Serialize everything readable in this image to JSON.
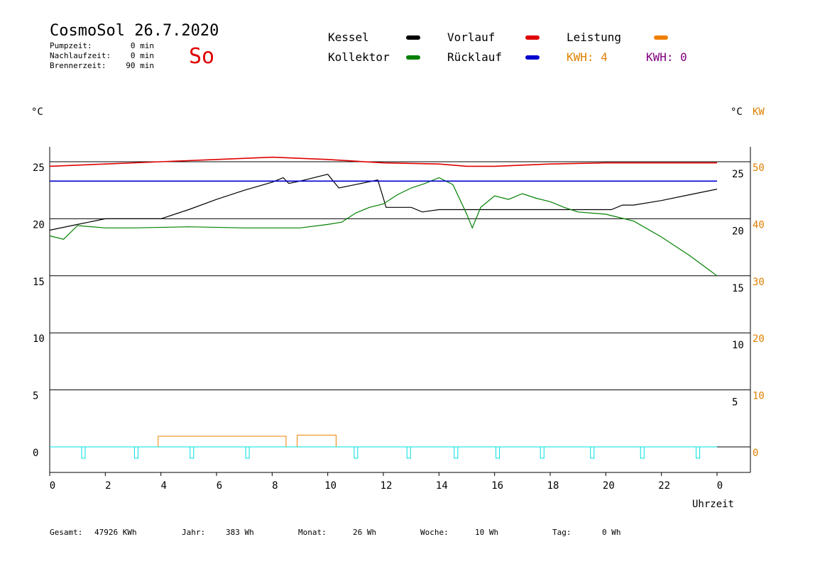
{
  "header": {
    "title": "CosmoSol 26.7.2020",
    "day": "So",
    "stats": [
      {
        "label": "Pumpzeit:",
        "value": "0 min"
      },
      {
        "label": "Nachlaufzeit:",
        "value": "0 min"
      },
      {
        "label": "Brennerzeit:",
        "value": "90 min"
      }
    ]
  },
  "legend": {
    "kessel": "Kessel",
    "kollektor": "Kollektor",
    "vorlauf": "Vorlauf",
    "ruecklauf": "Rücklauf",
    "leistung": "Leistung",
    "kwh_orange": "KWH: 4",
    "kwh_purple": "KWH: 0"
  },
  "colors": {
    "kessel": "#000000",
    "kollektor": "#008000",
    "vorlauf": "#e00000",
    "ruecklauf": "#0000d0",
    "leistung": "#f08000",
    "kwh_orange": "#e08000",
    "kwh_purple": "#800080",
    "pump": "#00e0e0",
    "title_day": "#e00000"
  },
  "axes": {
    "left_unit": "°C",
    "right_unit_c": "°C",
    "right_unit_kw": "KW",
    "x_label": "Uhrzeit"
  },
  "footer": [
    {
      "label": "Gesamt:",
      "value": "47926 KWh"
    },
    {
      "label": "Jahr:",
      "value": "383 Wh"
    },
    {
      "label": "Monat:",
      "value": "26 Wh"
    },
    {
      "label": "Woche:",
      "value": "10 Wh"
    },
    {
      "label": "Tag:",
      "value": "0 Wh"
    }
  ],
  "chart_data": {
    "type": "line",
    "xlabel": "Uhrzeit",
    "x_ticks": [
      "0",
      "2",
      "4",
      "6",
      "8",
      "10",
      "12",
      "14",
      "16",
      "18",
      "20",
      "22",
      "0"
    ],
    "xlim": [
      0,
      24
    ],
    "ylim": [
      0,
      25
    ],
    "y_ticks_left": [
      "0",
      "5",
      "10",
      "15",
      "20",
      "25"
    ],
    "y_ticks_right_c": [
      "5",
      "10",
      "15",
      "20",
      "25"
    ],
    "y_ticks_right_kw": [
      "0",
      "10",
      "20",
      "30",
      "40",
      "50"
    ],
    "grid": true,
    "series": [
      {
        "name": "Kessel",
        "points": [
          [
            0,
            19.0
          ],
          [
            1,
            19.5
          ],
          [
            2,
            20.0
          ],
          [
            3,
            20.0
          ],
          [
            4,
            20.0
          ],
          [
            5,
            20.8
          ],
          [
            6,
            21.7
          ],
          [
            7,
            22.5
          ],
          [
            8,
            23.2
          ],
          [
            8.4,
            23.6
          ],
          [
            8.6,
            23.1
          ],
          [
            9,
            23.3
          ],
          [
            10,
            23.9
          ],
          [
            10.4,
            22.7
          ],
          [
            11,
            23.0
          ],
          [
            11.8,
            23.4
          ],
          [
            12.1,
            21.0
          ],
          [
            13,
            21.0
          ],
          [
            13.4,
            20.6
          ],
          [
            14,
            20.8
          ],
          [
            16,
            20.8
          ],
          [
            18,
            20.8
          ],
          [
            19,
            20.8
          ],
          [
            20.2,
            20.8
          ],
          [
            20.6,
            21.2
          ],
          [
            21,
            21.2
          ],
          [
            22,
            21.6
          ],
          [
            23,
            22.1
          ],
          [
            24,
            22.6
          ]
        ]
      },
      {
        "name": "Kollektor",
        "points": [
          [
            0,
            18.5
          ],
          [
            0.5,
            18.2
          ],
          [
            1,
            19.4
          ],
          [
            2,
            19.2
          ],
          [
            3,
            19.2
          ],
          [
            5,
            19.3
          ],
          [
            7,
            19.2
          ],
          [
            9,
            19.2
          ],
          [
            10,
            19.5
          ],
          [
            10.5,
            19.7
          ],
          [
            11,
            20.5
          ],
          [
            11.5,
            21.0
          ],
          [
            12,
            21.3
          ],
          [
            12.5,
            22.1
          ],
          [
            13,
            22.7
          ],
          [
            13.5,
            23.1
          ],
          [
            14,
            23.6
          ],
          [
            14.5,
            23.0
          ],
          [
            15,
            20.4
          ],
          [
            15.2,
            19.2
          ],
          [
            15.5,
            21.0
          ],
          [
            16,
            22.0
          ],
          [
            16.5,
            21.7
          ],
          [
            17,
            22.2
          ],
          [
            17.5,
            21.8
          ],
          [
            18,
            21.5
          ],
          [
            18.5,
            21.0
          ],
          [
            19,
            20.6
          ],
          [
            20,
            20.4
          ],
          [
            21,
            19.8
          ],
          [
            22,
            18.4
          ],
          [
            23,
            16.8
          ],
          [
            24,
            15.0
          ]
        ]
      },
      {
        "name": "Vorlauf",
        "points": [
          [
            0,
            24.6
          ],
          [
            2,
            24.8
          ],
          [
            4,
            25.0
          ],
          [
            6,
            25.2
          ],
          [
            8,
            25.4
          ],
          [
            10,
            25.2
          ],
          [
            12,
            24.9
          ],
          [
            14,
            24.8
          ],
          [
            15,
            24.6
          ],
          [
            16,
            24.6
          ],
          [
            18,
            24.8
          ],
          [
            20,
            24.9
          ],
          [
            22,
            24.9
          ],
          [
            24,
            24.9
          ]
        ]
      },
      {
        "name": "Rücklauf",
        "points": [
          [
            0,
            23.3
          ],
          [
            4,
            23.3
          ],
          [
            8,
            23.3
          ],
          [
            10,
            23.3
          ],
          [
            12,
            23.3
          ],
          [
            16,
            23.3
          ],
          [
            20,
            23.3
          ],
          [
            24,
            23.3
          ]
        ]
      }
    ],
    "power_blocks_kw": [
      [
        3.9,
        8.5,
        1.0
      ],
      [
        8.9,
        10.3,
        1.2
      ]
    ],
    "pump_markers_h": [
      1.2,
      3.1,
      5.1,
      7.1,
      11.0,
      12.9,
      14.6,
      16.1,
      17.7,
      19.5,
      21.3,
      23.3
    ]
  }
}
